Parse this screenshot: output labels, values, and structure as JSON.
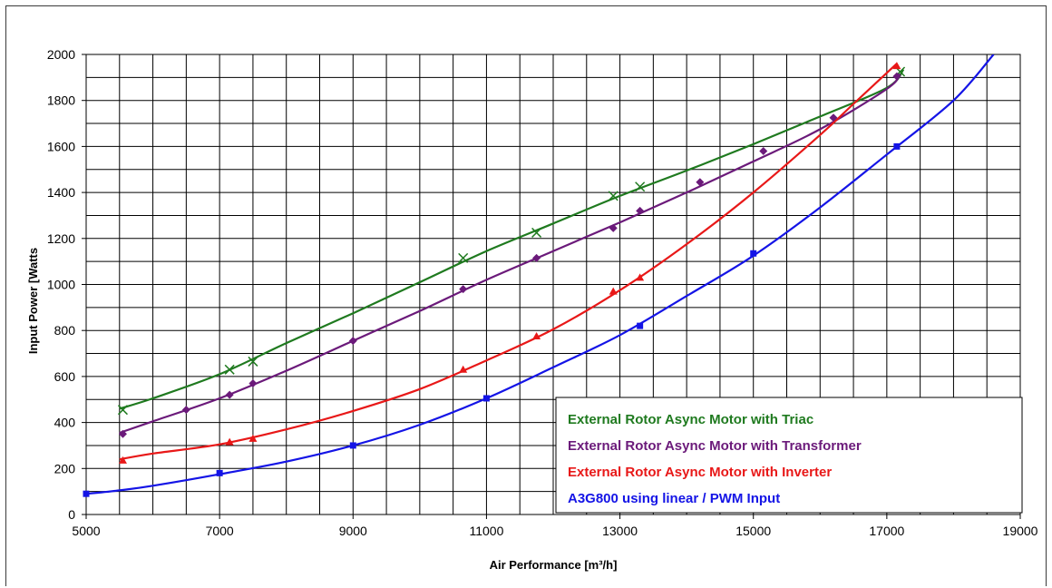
{
  "chart_data": {
    "type": "line",
    "xlabel": "Air Performance [m³/h]",
    "ylabel": "Input Power [Watts",
    "xlim": [
      5000,
      19000
    ],
    "ylim": [
      0,
      2000
    ],
    "x_major_ticks": [
      5000,
      7000,
      9000,
      11000,
      13000,
      15000,
      17000,
      19000
    ],
    "y_major_ticks": [
      0,
      200,
      400,
      600,
      800,
      1000,
      1200,
      1400,
      1600,
      1800,
      2000
    ],
    "grid": true,
    "legend_position": "bottom-right",
    "series": [
      {
        "name": "External Rotor Async Motor with Triac",
        "color": "#1f7a1f",
        "marker": "x",
        "points": [
          [
            5550,
            455
          ],
          [
            7150,
            630
          ],
          [
            7500,
            665
          ],
          [
            10650,
            1115
          ],
          [
            11750,
            1225
          ],
          [
            12900,
            1385
          ],
          [
            13300,
            1425
          ],
          [
            17200,
            1925
          ]
        ],
        "fit": [
          [
            5500,
            460
          ],
          [
            6000,
            505
          ],
          [
            7000,
            610
          ],
          [
            8000,
            745
          ],
          [
            9000,
            875
          ],
          [
            10000,
            1010
          ],
          [
            11000,
            1145
          ],
          [
            12000,
            1265
          ],
          [
            13000,
            1385
          ],
          [
            14000,
            1495
          ],
          [
            15000,
            1610
          ],
          [
            16000,
            1730
          ],
          [
            17000,
            1855
          ],
          [
            17250,
            1935
          ]
        ]
      },
      {
        "name": "External Rotor Async Motor with Transformer",
        "color": "#6b1a7a",
        "marker": "diamond",
        "points": [
          [
            5550,
            350
          ],
          [
            6500,
            455
          ],
          [
            7150,
            520
          ],
          [
            7500,
            570
          ],
          [
            9000,
            755
          ],
          [
            10650,
            980
          ],
          [
            11750,
            1115
          ],
          [
            12900,
            1245
          ],
          [
            13300,
            1320
          ],
          [
            14200,
            1445
          ],
          [
            15150,
            1580
          ],
          [
            16200,
            1725
          ],
          [
            17150,
            1905
          ]
        ],
        "fit": [
          [
            5500,
            355
          ],
          [
            6000,
            405
          ],
          [
            7000,
            505
          ],
          [
            8000,
            625
          ],
          [
            9000,
            755
          ],
          [
            10000,
            885
          ],
          [
            11000,
            1020
          ],
          [
            12000,
            1145
          ],
          [
            13000,
            1270
          ],
          [
            14000,
            1400
          ],
          [
            15000,
            1535
          ],
          [
            16000,
            1675
          ],
          [
            17000,
            1850
          ],
          [
            17200,
            1915
          ]
        ]
      },
      {
        "name": "External Rotor Async Motor with Inverter",
        "color": "#e81818",
        "marker": "triangle",
        "points": [
          [
            5550,
            235
          ],
          [
            7150,
            315
          ],
          [
            7500,
            330
          ],
          [
            10650,
            630
          ],
          [
            11750,
            775
          ],
          [
            12900,
            970
          ],
          [
            13300,
            1030
          ],
          [
            17150,
            1950
          ]
        ],
        "fit": [
          [
            5500,
            240
          ],
          [
            6000,
            265
          ],
          [
            7000,
            305
          ],
          [
            8000,
            370
          ],
          [
            9000,
            450
          ],
          [
            10000,
            545
          ],
          [
            11000,
            670
          ],
          [
            12000,
            805
          ],
          [
            13000,
            975
          ],
          [
            14000,
            1175
          ],
          [
            15000,
            1400
          ],
          [
            16000,
            1650
          ],
          [
            16500,
            1785
          ],
          [
            17150,
            1960
          ]
        ]
      },
      {
        "name": "A3G800 using linear / PWM Input",
        "color": "#1414e6",
        "marker": "square",
        "points": [
          [
            5000,
            90
          ],
          [
            7000,
            180
          ],
          [
            9000,
            300
          ],
          [
            11000,
            505
          ],
          [
            13300,
            820
          ],
          [
            15000,
            1135
          ],
          [
            17150,
            1600
          ]
        ],
        "fit": [
          [
            5000,
            90
          ],
          [
            5500,
            105
          ],
          [
            6000,
            125
          ],
          [
            7000,
            175
          ],
          [
            8000,
            230
          ],
          [
            9000,
            300
          ],
          [
            10000,
            390
          ],
          [
            11000,
            505
          ],
          [
            12000,
            640
          ],
          [
            13000,
            780
          ],
          [
            14000,
            950
          ],
          [
            15000,
            1125
          ],
          [
            16000,
            1335
          ],
          [
            17000,
            1565
          ],
          [
            18000,
            1800
          ],
          [
            18600,
            2000
          ]
        ]
      }
    ]
  }
}
